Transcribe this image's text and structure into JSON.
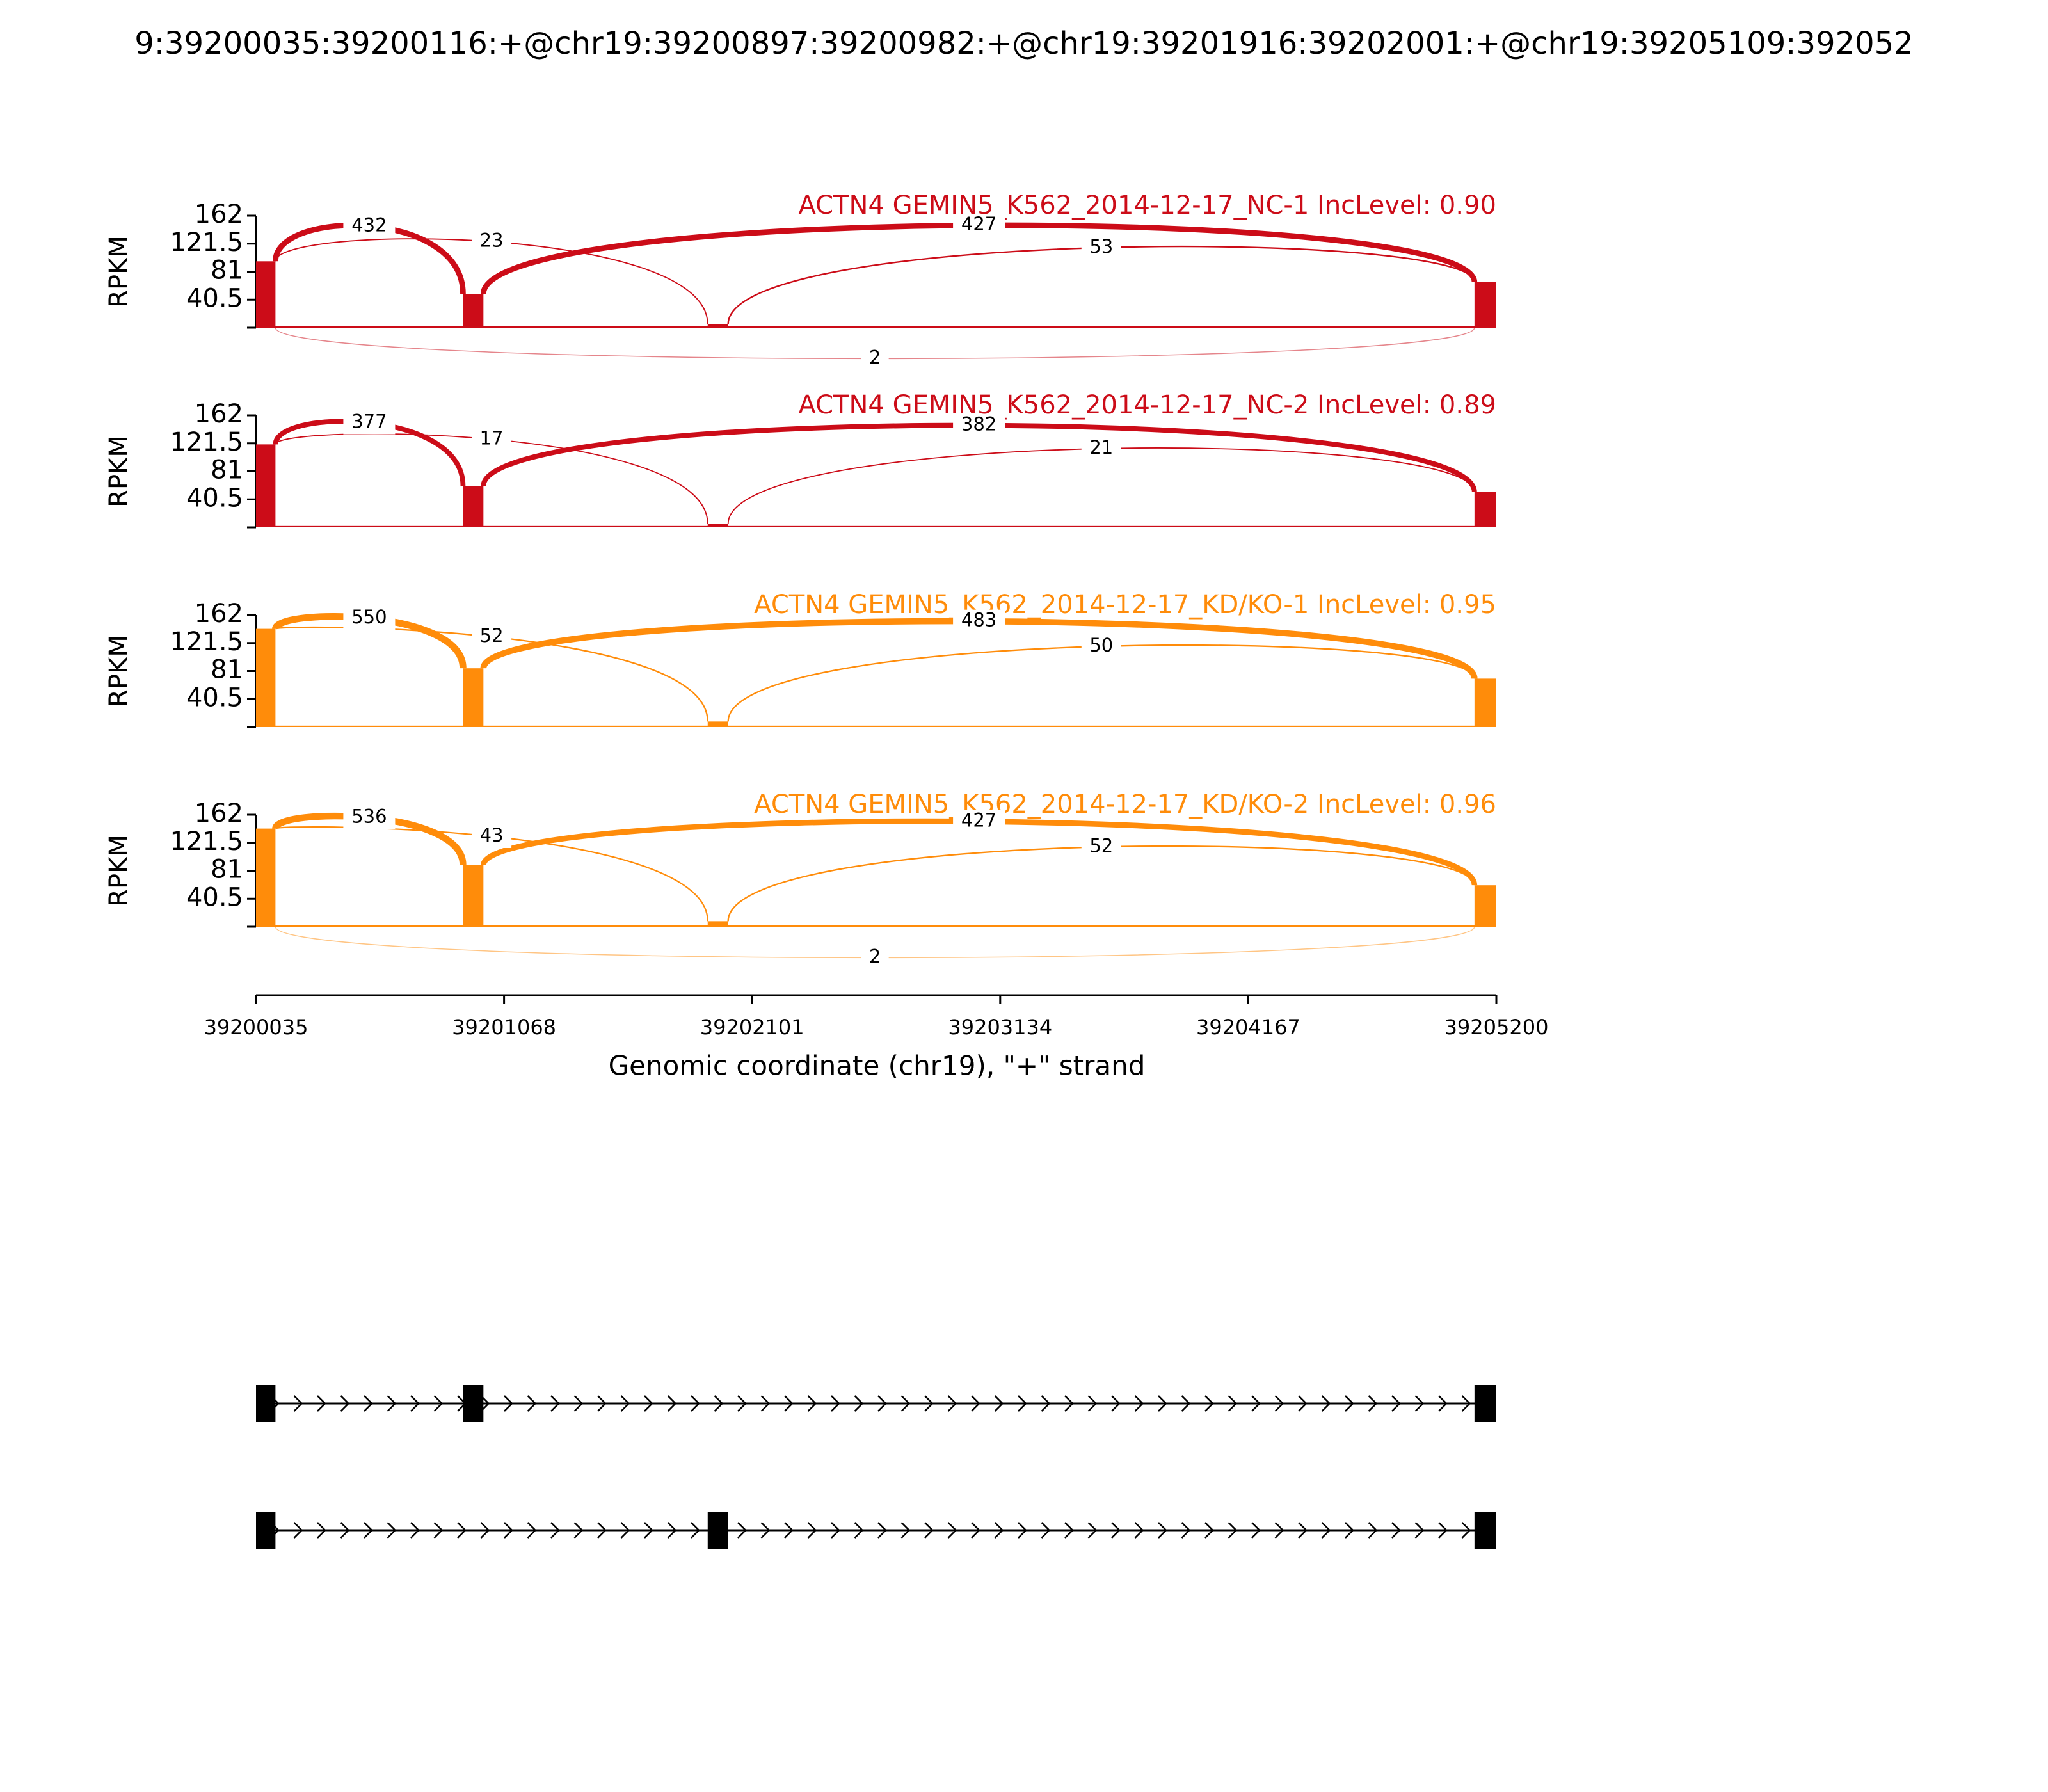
{
  "chart_data": {
    "type": "sashimi",
    "title": "9:39200035:39200116:+@chr19:39200897:39200982:+@chr19:39201916:39202001:+@chr19:39205109:392052",
    "xlabel": "Genomic coordinate (chr19), \"+\" strand",
    "ylabel": "RPKM",
    "xlim": [
      39200035,
      39205200
    ],
    "xticks": [
      39200035,
      39201068,
      39202101,
      39203134,
      39204167,
      39205200
    ],
    "ylim": [
      0,
      162
    ],
    "yticks": [
      40.5,
      81,
      121.5,
      162
    ],
    "exons": [
      [
        39200035,
        39200116
      ],
      [
        39200897,
        39200982
      ],
      [
        39201916,
        39202001
      ],
      [
        39205109,
        39205200
      ]
    ],
    "panels": [
      {
        "title": "ACTN4 GEMIN5_K562_2014-12-17_NC-1 IncLevel: 0.90",
        "color": "#cc0c18",
        "coverage": [
          96,
          49,
          5,
          66
        ],
        "intron_coverage": 2
      },
      {
        "title": "ACTN4 GEMIN5_K562_2014-12-17_NC-2 IncLevel: 0.89",
        "color": "#cc0c18",
        "coverage": [
          120,
          60,
          5,
          51
        ],
        "intron_coverage": 2
      },
      {
        "title": "ACTN4 GEMIN5_K562_2014-12-17_KD/KO-1 IncLevel: 0.95",
        "color": "#ff8c0a",
        "coverage": [
          142,
          85,
          8,
          70
        ],
        "intron_coverage": 2
      },
      {
        "title": "ACTN4 GEMIN5_K562_2014-12-17_KD/KO-2 IncLevel: 0.96",
        "color": "#ff8c0a",
        "coverage": [
          142,
          89,
          8,
          60
        ],
        "intron_coverage": 2
      }
    ],
    "junctions": [
      {
        "start": 39200116,
        "end": 39200897,
        "counts": [
          432,
          377,
          550,
          536
        ]
      },
      {
        "start": 39200982,
        "end": 39205109,
        "counts": [
          427,
          382,
          483,
          427
        ]
      },
      {
        "start": 39200116,
        "end": 39201916,
        "counts": [
          23,
          17,
          52,
          43
        ]
      },
      {
        "start": 39202001,
        "end": 39205109,
        "counts": [
          53,
          21,
          50,
          52
        ]
      },
      {
        "start": 39200116,
        "end": 39205109,
        "counts": [
          2,
          null,
          null,
          2
        ]
      }
    ],
    "transcripts": [
      [
        [
          39200035,
          39200116
        ],
        [
          39200897,
          39200982
        ],
        [
          39205109,
          39205200
        ]
      ],
      [
        [
          39200035,
          39200116
        ],
        [
          39201916,
          39202001
        ],
        [
          39205109,
          39205200
        ]
      ]
    ]
  }
}
